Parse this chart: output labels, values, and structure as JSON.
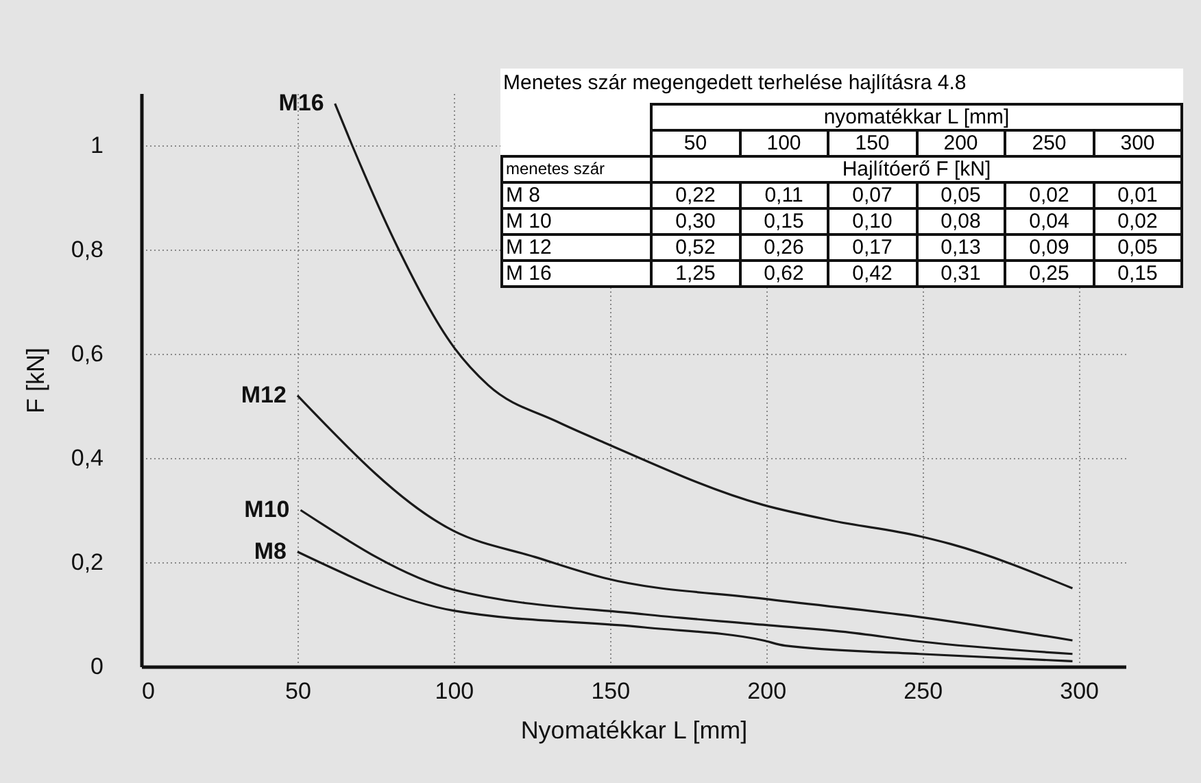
{
  "chart_data": {
    "type": "line",
    "xlabel": "Nyomatékkar L [mm]",
    "ylabel": "F [kN]",
    "xlim": [
      0,
      315
    ],
    "ylim": [
      0,
      1.1
    ],
    "xticks": [
      0,
      50,
      100,
      150,
      200,
      250,
      300
    ],
    "yticks": [
      0,
      {
        "value": 0.2,
        "label": "0,2"
      },
      {
        "value": 0.4,
        "label": "0,4"
      },
      {
        "value": 0.6,
        "label": "0,6"
      },
      {
        "value": 0.8,
        "label": "0,8"
      },
      1
    ],
    "grid": true,
    "legend": false,
    "marker": "none",
    "line_style": "solid",
    "series": [
      {
        "name": "M8",
        "color": "#1a1a1a",
        "x": [
          50,
          100,
          161,
          199,
          206,
          249,
          298
        ],
        "values": [
          0.22,
          0.107,
          0.075,
          0.05,
          0.04,
          0.024,
          0.01
        ]
      },
      {
        "name": "M10",
        "color": "#1a1a1a",
        "x": [
          51,
          100,
          161,
          199,
          227,
          249,
          298
        ],
        "values": [
          0.3,
          0.147,
          0.1,
          0.08,
          0.065,
          0.048,
          0.024
        ]
      },
      {
        "name": "M12",
        "color": "#1a1a1a",
        "x": [
          50,
          100,
          126,
          148,
          199,
          249,
          298
        ],
        "values": [
          0.52,
          0.26,
          0.21,
          0.17,
          0.13,
          0.095,
          0.05
        ]
      },
      {
        "name": "M16",
        "color": "#1a1a1a",
        "x": [
          62,
          67.5,
          82,
          100,
          111,
          133,
          148,
          199,
          221,
          249,
          259,
          298
        ],
        "values": [
          1.08,
          1.0,
          0.805,
          0.613,
          0.54,
          0.47,
          0.43,
          0.31,
          0.28,
          0.25,
          0.235,
          0.15
        ]
      }
    ],
    "annotations": [
      "Menetes szár megengedett terhelése hajlításra 4.8",
      "nyomatékkar  L  [mm]",
      "50",
      "100",
      "150",
      "200",
      "250",
      "300",
      "menetes szár",
      "Hajlítóerő    F  [kN]",
      "M 8",
      "0,22",
      "0,11",
      "0,07",
      "0,05",
      "0,02",
      "0,01",
      "M 10",
      "0,30",
      "0,15",
      "0,10",
      "0,08",
      "0,04",
      "0,02",
      "M 12",
      "0,52",
      "0,26",
      "0,17",
      "0,13",
      "0,09",
      "0,05",
      "M 16",
      "1,25",
      "0,62",
      "0,42",
      "0,31",
      "0,25",
      "0,15"
    ]
  }
}
